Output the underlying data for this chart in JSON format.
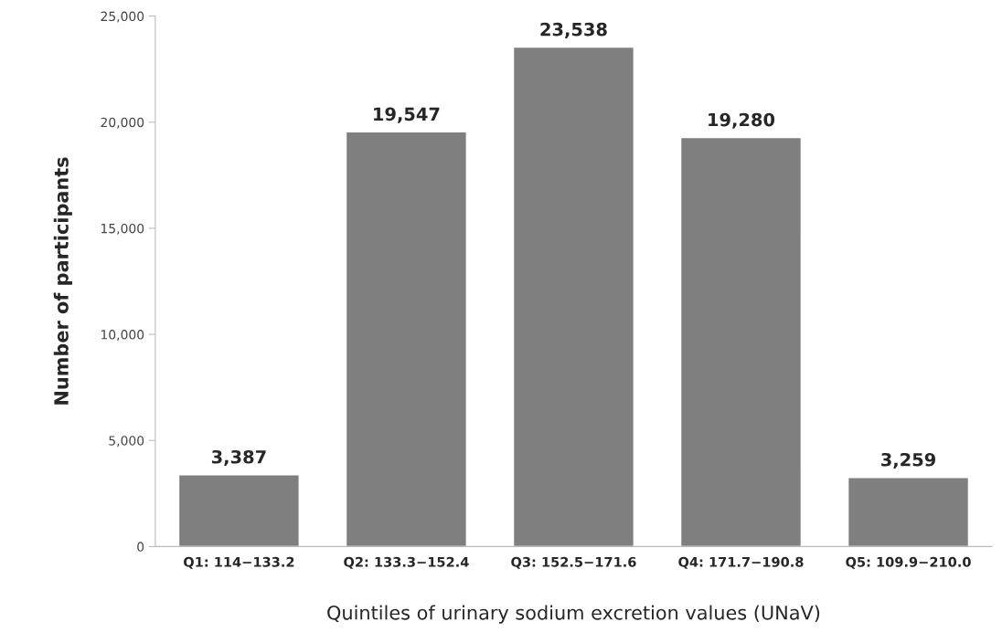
{
  "chart_data": {
    "type": "bar",
    "xlabel": "Quintiles of urinary sodium excretion values (UNaV)",
    "ylabel": "Number of participants",
    "categories": [
      "Q1: 114−133.2",
      "Q2: 133.3−152.4",
      "Q3: 152.5−171.6",
      "Q4: 171.7−190.8",
      "Q5: 109.9−210.0"
    ],
    "values": [
      3387,
      19547,
      23538,
      19280,
      3259
    ],
    "value_labels": [
      "3,387",
      "19,547",
      "23,538",
      "19,280",
      "3,259"
    ],
    "color": "#7f7f7f",
    "ylim": [
      0,
      25000
    ],
    "yticks": [
      {
        "value": 0,
        "label": "0"
      },
      {
        "value": 5000,
        "label": "5,000"
      },
      {
        "value": 10000,
        "label": "10,000"
      },
      {
        "value": 15000,
        "label": "15,000"
      },
      {
        "value": 20000,
        "label": "20,000"
      },
      {
        "value": 25000,
        "label": "25,000"
      }
    ],
    "grid": false
  }
}
